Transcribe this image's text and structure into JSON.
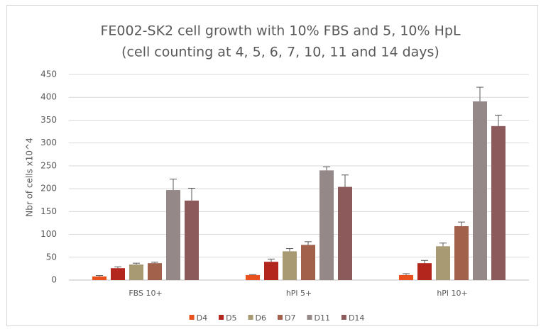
{
  "chart_data": {
    "type": "bar",
    "title": "FE002-SK2 cell growth with 10% FBS and 5, 10% HpL",
    "subtitle": "(cell counting at 4, 5, 6, 7, 10, 11 and 14 days)",
    "y_label": "Nbr of cells x10^4",
    "categories": [
      "FBS 10+",
      "hPl 5+",
      "hPl 10+"
    ],
    "series": [
      {
        "name": "D4",
        "color": "#e8501e",
        "values": [
          8,
          11,
          11
        ],
        "errors": [
          2,
          1,
          3
        ]
      },
      {
        "name": "D5",
        "color": "#b3261e",
        "values": [
          26,
          40,
          37
        ],
        "errors": [
          3,
          6,
          6
        ]
      },
      {
        "name": "D6",
        "color": "#a89a72",
        "values": [
          34,
          63,
          74
        ],
        "errors": [
          3,
          6,
          7
        ]
      },
      {
        "name": "D7",
        "color": "#a2614a",
        "values": [
          37,
          77,
          118
        ],
        "errors": [
          2,
          7,
          9
        ]
      },
      {
        "name": "D11",
        "color": "#958888",
        "values": [
          197,
          240,
          391
        ],
        "errors": [
          24,
          8,
          31
        ]
      },
      {
        "name": "D14",
        "color": "#8c5a5a",
        "values": [
          174,
          204,
          337
        ],
        "errors": [
          27,
          26,
          24
        ]
      }
    ],
    "ylim": [
      0,
      450
    ],
    "yticks": [
      0,
      50,
      100,
      150,
      200,
      250,
      300,
      350,
      400,
      450
    ],
    "grid": true,
    "legend": "bottom"
  }
}
